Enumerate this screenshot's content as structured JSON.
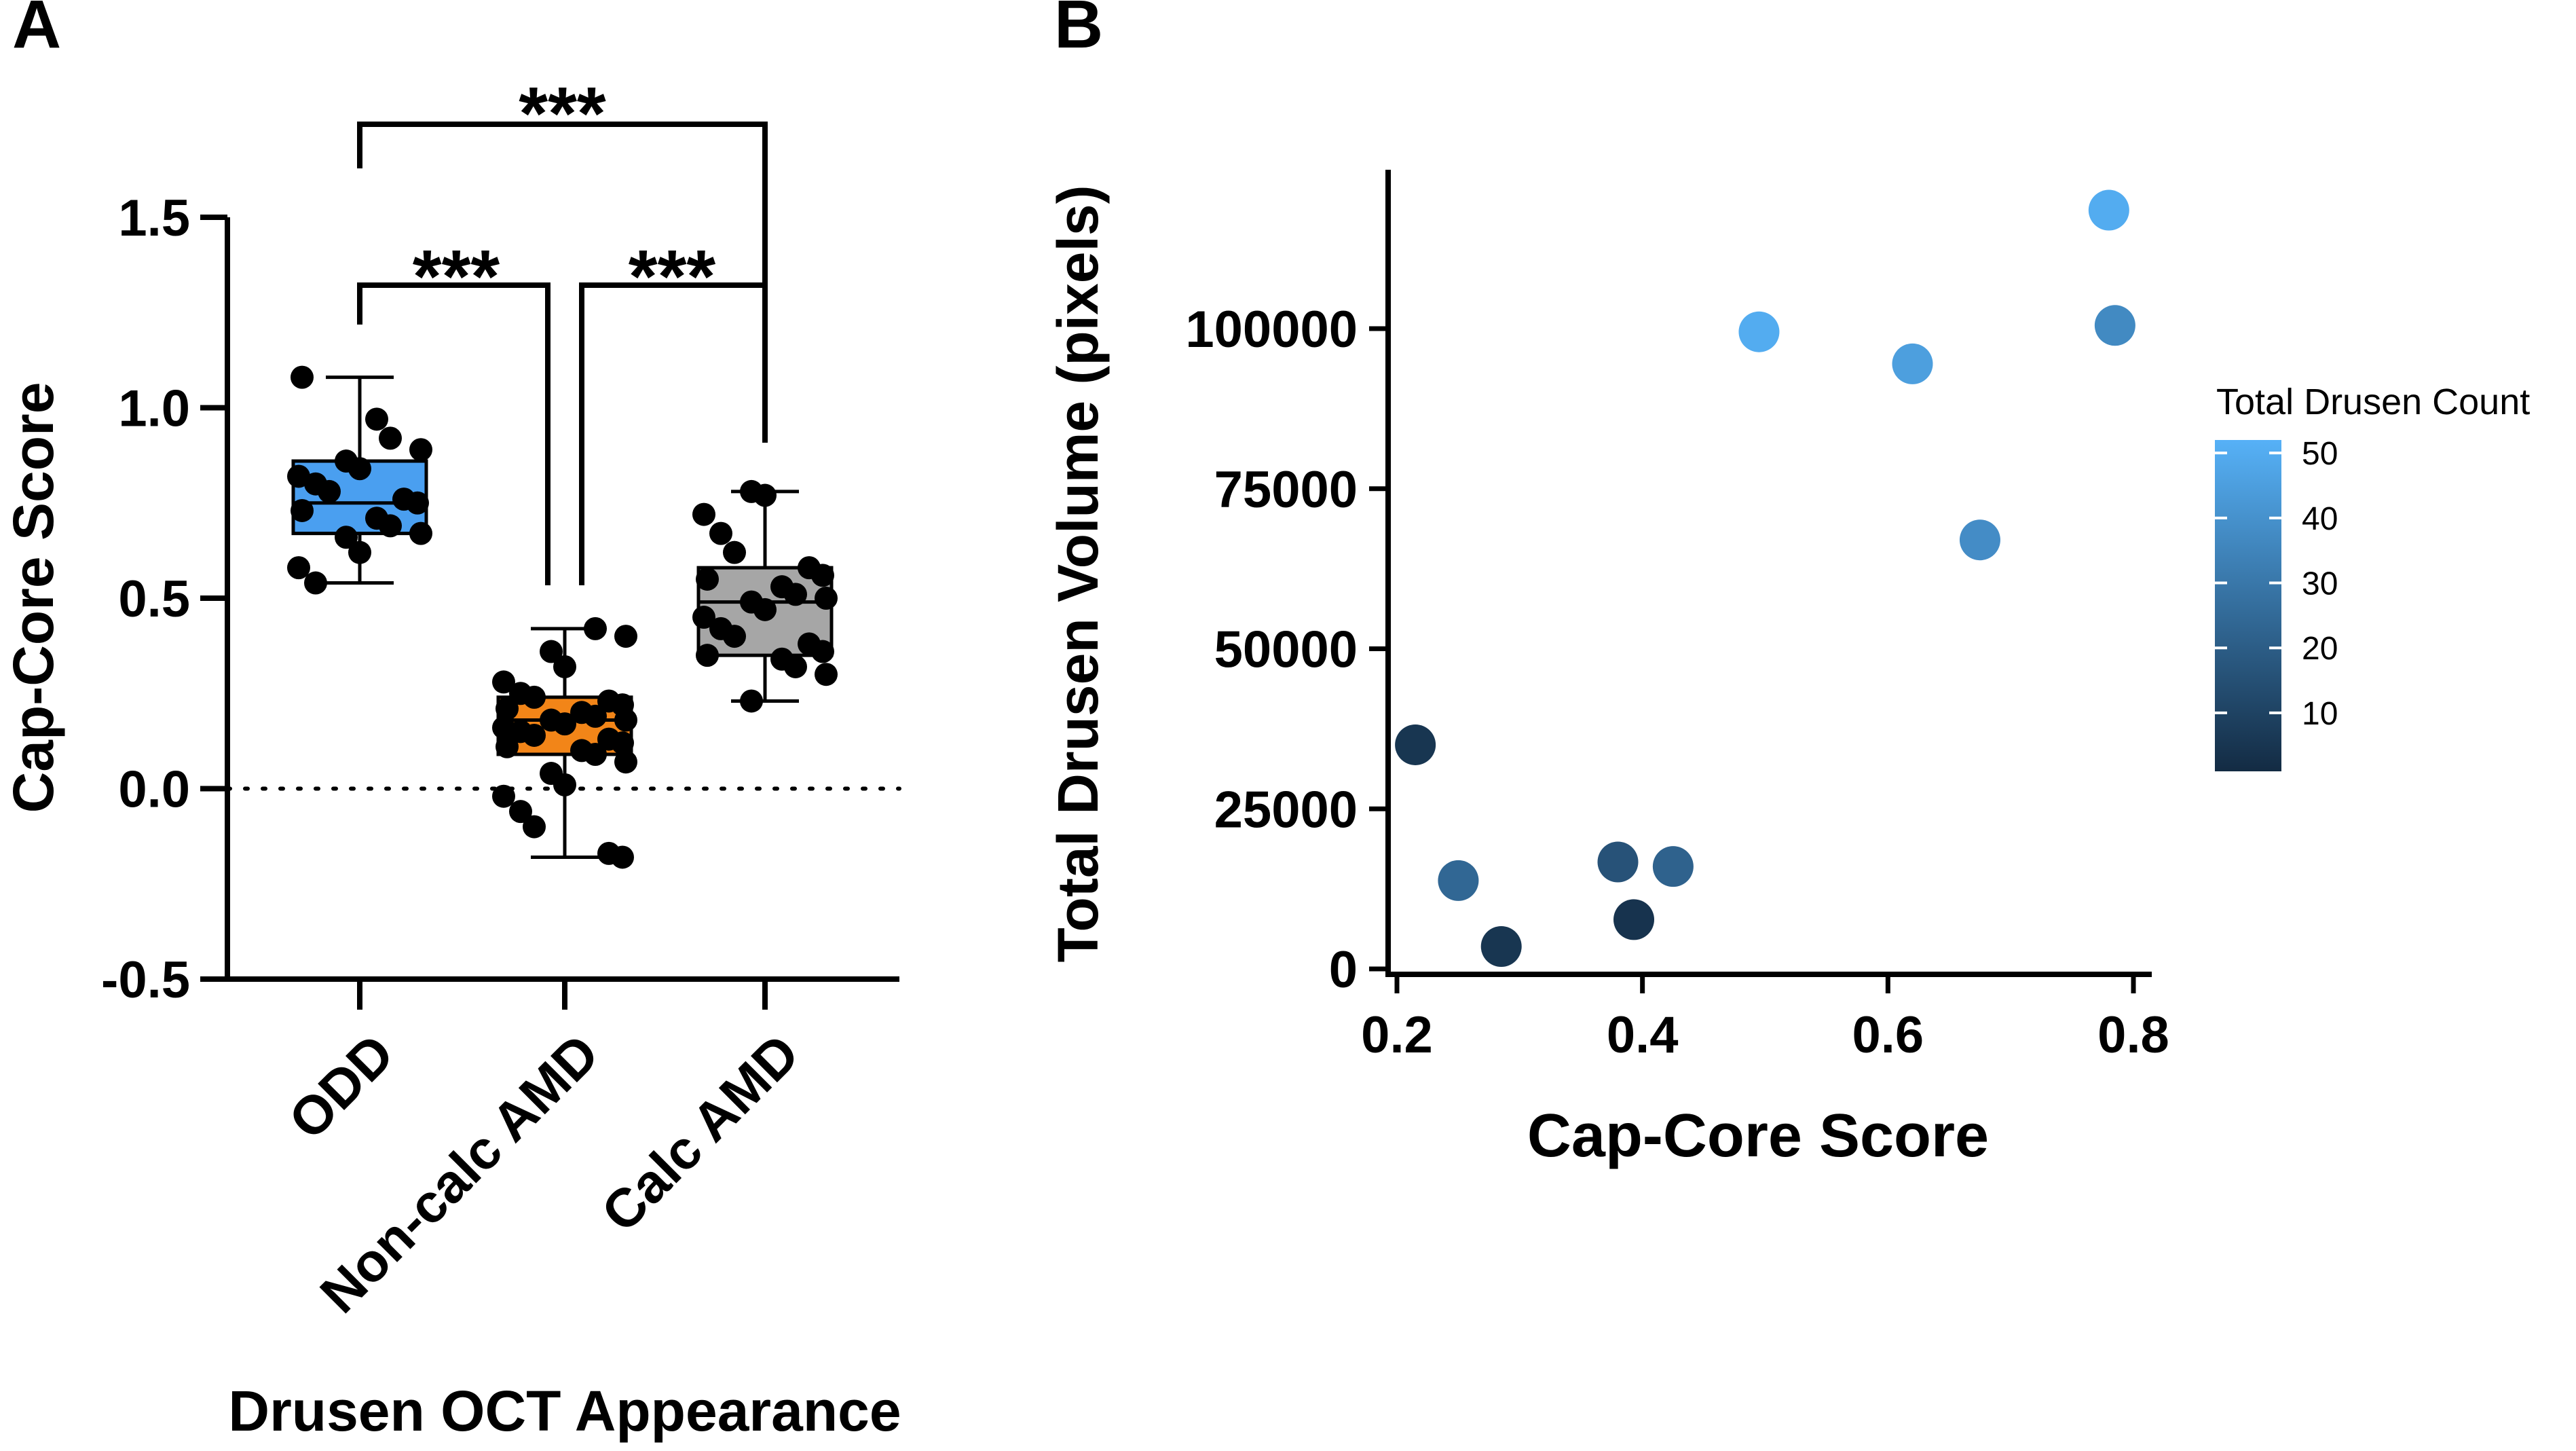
{
  "chart_data": [
    {
      "panel": "A",
      "type": "box",
      "xlabel": "Drusen OCT Appearance",
      "ylabel": "Cap-Core Score",
      "ylim": [
        -0.5,
        1.5
      ],
      "yticks": [
        "-0.5",
        "0.0",
        "0.5",
        "1.0",
        "1.5"
      ],
      "ytick_values": [
        -0.5,
        0.0,
        0.5,
        1.0,
        1.5
      ],
      "reference_line": 0.0,
      "categories": [
        "ODD",
        "Non-calc AMD",
        "Calc AMD"
      ],
      "colors": [
        "#4a9ff0",
        "#f28518",
        "#a6a6a6"
      ],
      "boxes": [
        {
          "min": 0.54,
          "q1": 0.67,
          "median": 0.75,
          "q3": 0.86,
          "max": 1.08,
          "points": [
            1.08,
            0.97,
            0.92,
            0.89,
            0.86,
            0.84,
            0.82,
            0.8,
            0.78,
            0.76,
            0.75,
            0.73,
            0.71,
            0.69,
            0.67,
            0.66,
            0.62,
            0.58,
            0.54
          ]
        },
        {
          "min": -0.18,
          "q1": 0.09,
          "median": 0.18,
          "q3": 0.24,
          "max": 0.42,
          "points": [
            0.42,
            0.4,
            0.36,
            0.32,
            0.28,
            0.25,
            0.24,
            0.23,
            0.22,
            0.21,
            0.2,
            0.19,
            0.18,
            0.18,
            0.17,
            0.16,
            0.15,
            0.14,
            0.13,
            0.12,
            0.11,
            0.1,
            0.09,
            0.07,
            0.04,
            0.01,
            -0.02,
            -0.06,
            -0.1,
            -0.17,
            -0.18
          ]
        },
        {
          "min": 0.23,
          "q1": 0.35,
          "median": 0.49,
          "q3": 0.58,
          "max": 0.78,
          "points": [
            0.78,
            0.77,
            0.72,
            0.67,
            0.62,
            0.58,
            0.56,
            0.55,
            0.53,
            0.51,
            0.5,
            0.49,
            0.47,
            0.45,
            0.42,
            0.4,
            0.38,
            0.36,
            0.35,
            0.34,
            0.32,
            0.3,
            0.23
          ]
        }
      ],
      "comparisons": [
        {
          "from": 0,
          "to": 2,
          "label": "***"
        },
        {
          "from": 0,
          "to": 1,
          "label": "***"
        },
        {
          "from": 1,
          "to": 2,
          "label": "***"
        }
      ]
    },
    {
      "panel": "B",
      "type": "scatter",
      "xlabel": "Cap-Core Score",
      "ylabel": "Total Drusen Volume (pixels)",
      "xlim": [
        0.2,
        0.8
      ],
      "ylim": [
        0,
        120000
      ],
      "xticks": [
        "0.2",
        "0.4",
        "0.6",
        "0.8"
      ],
      "xtick_values": [
        0.2,
        0.4,
        0.6,
        0.8
      ],
      "yticks": [
        "0",
        "25000",
        "50000",
        "75000",
        "100000"
      ],
      "ytick_values": [
        0,
        25000,
        50000,
        75000,
        100000
      ],
      "legend_title": "Total Drusen Count",
      "legend_position": "right",
      "colorbar_ticks": [
        "10",
        "20",
        "30",
        "40",
        "50"
      ],
      "colorbar_tick_values": [
        10,
        20,
        30,
        40,
        50
      ],
      "colorbar_range": [
        1,
        52
      ],
      "color_low": "#132b43",
      "color_high": "#56b1f7",
      "points": [
        {
          "x": 0.215,
          "y": 35000,
          "count": 5
        },
        {
          "x": 0.25,
          "y": 13800,
          "count": 24
        },
        {
          "x": 0.285,
          "y": 3500,
          "count": 5
        },
        {
          "x": 0.38,
          "y": 16700,
          "count": 16
        },
        {
          "x": 0.393,
          "y": 7700,
          "count": 4
        },
        {
          "x": 0.425,
          "y": 16000,
          "count": 22
        },
        {
          "x": 0.495,
          "y": 99500,
          "count": 50
        },
        {
          "x": 0.62,
          "y": 94500,
          "count": 45
        },
        {
          "x": 0.675,
          "y": 67000,
          "count": 38
        },
        {
          "x": 0.78,
          "y": 118500,
          "count": 50
        },
        {
          "x": 0.785,
          "y": 100500,
          "count": 37
        }
      ]
    }
  ],
  "panels": {
    "a_label": "A",
    "b_label": "B"
  }
}
